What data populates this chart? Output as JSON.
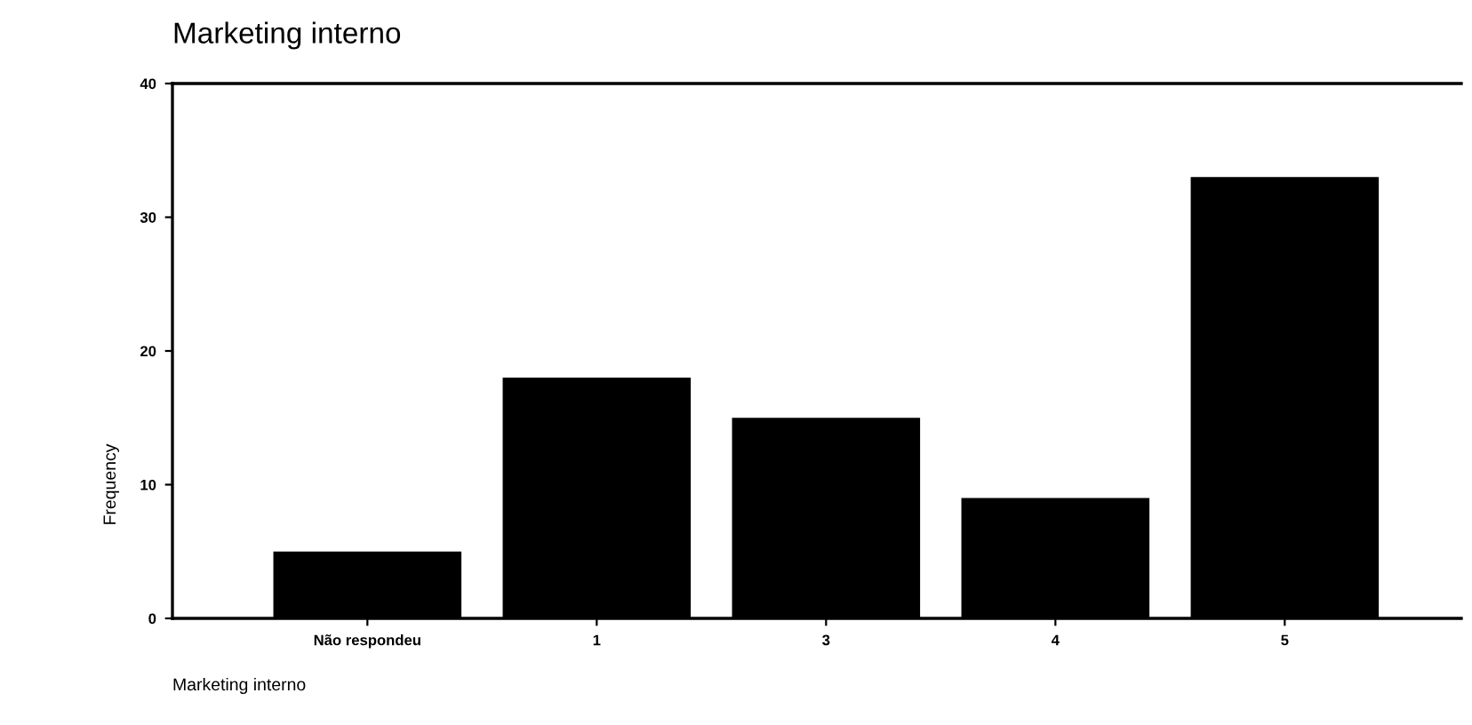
{
  "chart_data": {
    "type": "bar",
    "title": "Marketing interno",
    "xlabel": "Marketing interno",
    "ylabel": "Frequency",
    "categories": [
      "Não respondeu",
      "1",
      "3",
      "4",
      "5"
    ],
    "values": [
      5,
      18,
      15,
      9,
      33
    ],
    "color": "#000000",
    "ylim": [
      0,
      40
    ],
    "yticks": [
      0,
      10,
      20,
      30,
      40
    ],
    "grid": false,
    "legend": false
  }
}
